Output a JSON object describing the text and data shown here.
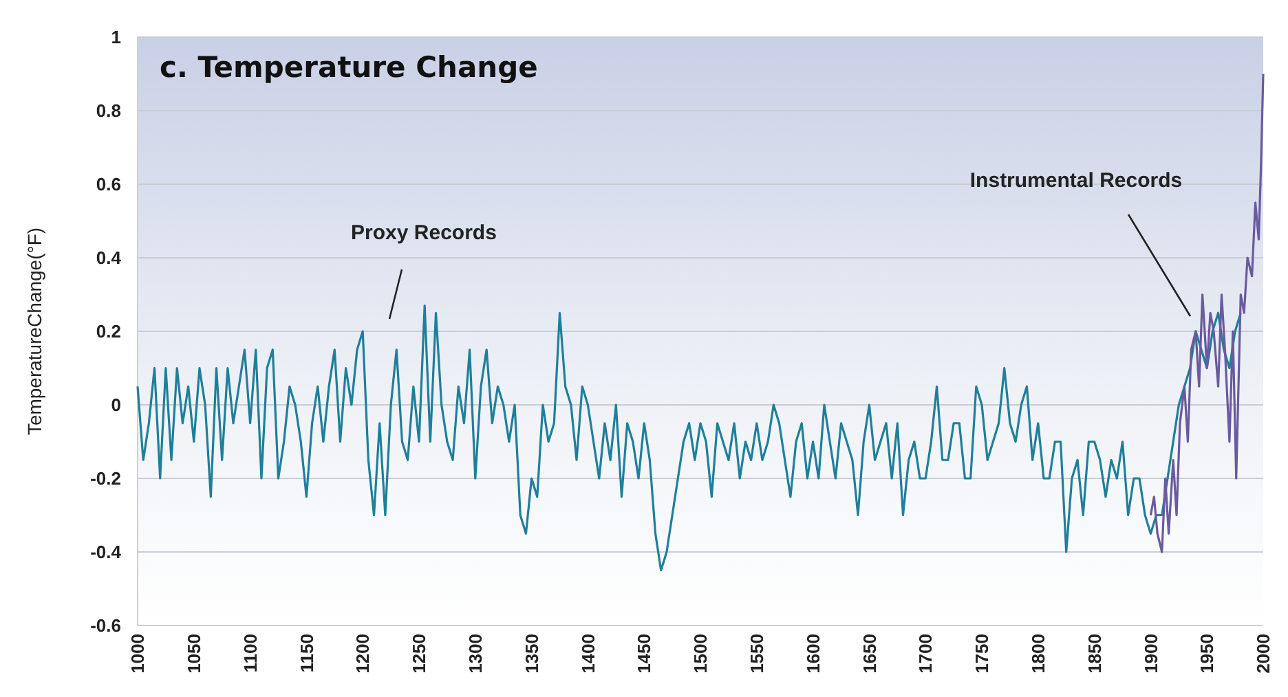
{
  "chart_data": {
    "type": "line",
    "title": "c. Temperature Change",
    "ylabel": "TemperatureChange(°F)",
    "xlim": [
      1000,
      2000
    ],
    "xticks": [
      1000,
      1050,
      1100,
      1150,
      1200,
      1250,
      1300,
      1350,
      1400,
      1450,
      1500,
      1550,
      1600,
      1650,
      1700,
      1750,
      1800,
      1850,
      1900,
      1950,
      2000
    ],
    "ylim": [
      -0.6,
      1
    ],
    "yticks": [
      -0.6,
      -0.4,
      -0.2,
      0,
      0.2,
      0.4,
      0.6,
      0.8,
      1
    ],
    "grid": "y",
    "series": [
      {
        "name": "Proxy Records",
        "color": "#1f7f9a",
        "x": [
          1000,
          1005,
          1010,
          1015,
          1020,
          1025,
          1030,
          1035,
          1040,
          1045,
          1050,
          1055,
          1060,
          1065,
          1070,
          1075,
          1080,
          1085,
          1090,
          1095,
          1100,
          1105,
          1110,
          1115,
          1120,
          1125,
          1130,
          1135,
          1140,
          1145,
          1150,
          1155,
          1160,
          1165,
          1170,
          1175,
          1180,
          1185,
          1190,
          1195,
          1200,
          1205,
          1210,
          1215,
          1220,
          1225,
          1230,
          1235,
          1240,
          1245,
          1250,
          1255,
          1260,
          1265,
          1270,
          1275,
          1280,
          1285,
          1290,
          1295,
          1300,
          1305,
          1310,
          1315,
          1320,
          1325,
          1330,
          1335,
          1340,
          1345,
          1350,
          1355,
          1360,
          1365,
          1370,
          1375,
          1380,
          1385,
          1390,
          1395,
          1400,
          1405,
          1410,
          1415,
          1420,
          1425,
          1430,
          1435,
          1440,
          1445,
          1450,
          1455,
          1460,
          1465,
          1470,
          1475,
          1480,
          1485,
          1490,
          1495,
          1500,
          1505,
          1510,
          1515,
          1520,
          1525,
          1530,
          1535,
          1540,
          1545,
          1550,
          1555,
          1560,
          1565,
          1570,
          1575,
          1580,
          1585,
          1590,
          1595,
          1600,
          1605,
          1610,
          1615,
          1620,
          1625,
          1630,
          1635,
          1640,
          1645,
          1650,
          1655,
          1660,
          1665,
          1670,
          1675,
          1680,
          1685,
          1690,
          1695,
          1700,
          1705,
          1710,
          1715,
          1720,
          1725,
          1730,
          1735,
          1740,
          1745,
          1750,
          1755,
          1760,
          1765,
          1770,
          1775,
          1780,
          1785,
          1790,
          1795,
          1800,
          1805,
          1810,
          1815,
          1820,
          1825,
          1830,
          1835,
          1840,
          1845,
          1850,
          1855,
          1860,
          1865,
          1870,
          1875,
          1880,
          1885,
          1890,
          1895,
          1900,
          1905,
          1910,
          1915,
          1920,
          1925,
          1930,
          1935,
          1940,
          1945,
          1950,
          1955,
          1960,
          1965,
          1970,
          1975,
          1980
        ],
        "values": [
          0.05,
          -0.15,
          -0.05,
          0.1,
          -0.2,
          0.1,
          -0.15,
          0.1,
          -0.05,
          0.05,
          -0.1,
          0.1,
          0.0,
          -0.25,
          0.1,
          -0.15,
          0.1,
          -0.05,
          0.05,
          0.15,
          -0.05,
          0.15,
          -0.2,
          0.1,
          0.15,
          -0.2,
          -0.1,
          0.05,
          0.0,
          -0.1,
          -0.25,
          -0.05,
          0.05,
          -0.1,
          0.05,
          0.15,
          -0.1,
          0.1,
          0.0,
          0.15,
          0.2,
          -0.15,
          -0.3,
          -0.05,
          -0.3,
          0.0,
          0.15,
          -0.1,
          -0.15,
          0.05,
          -0.1,
          0.27,
          -0.1,
          0.25,
          0.0,
          -0.1,
          -0.15,
          0.05,
          -0.05,
          0.15,
          -0.2,
          0.05,
          0.15,
          -0.05,
          0.05,
          0.0,
          -0.1,
          0.0,
          -0.3,
          -0.35,
          -0.2,
          -0.25,
          0.0,
          -0.1,
          -0.05,
          0.25,
          0.05,
          0.0,
          -0.15,
          0.05,
          0.0,
          -0.1,
          -0.2,
          -0.05,
          -0.15,
          0.0,
          -0.25,
          -0.05,
          -0.1,
          -0.2,
          -0.05,
          -0.15,
          -0.35,
          -0.45,
          -0.4,
          -0.3,
          -0.2,
          -0.1,
          -0.05,
          -0.15,
          -0.05,
          -0.1,
          -0.25,
          -0.05,
          -0.1,
          -0.15,
          -0.05,
          -0.2,
          -0.1,
          -0.15,
          -0.05,
          -0.15,
          -0.1,
          0.0,
          -0.05,
          -0.15,
          -0.25,
          -0.1,
          -0.05,
          -0.2,
          -0.1,
          -0.2,
          0.0,
          -0.1,
          -0.2,
          -0.05,
          -0.1,
          -0.15,
          -0.3,
          -0.1,
          0.0,
          -0.15,
          -0.1,
          -0.05,
          -0.2,
          -0.05,
          -0.3,
          -0.15,
          -0.1,
          -0.2,
          -0.2,
          -0.1,
          0.05,
          -0.15,
          -0.15,
          -0.05,
          -0.05,
          -0.2,
          -0.2,
          0.05,
          0.0,
          -0.15,
          -0.1,
          -0.05,
          0.1,
          -0.05,
          -0.1,
          0.0,
          0.05,
          -0.15,
          -0.05,
          -0.2,
          -0.2,
          -0.1,
          -0.1,
          -0.4,
          -0.2,
          -0.15,
          -0.3,
          -0.1,
          -0.1,
          -0.15,
          -0.25,
          -0.15,
          -0.2,
          -0.1,
          -0.3,
          -0.2,
          -0.2,
          -0.3,
          -0.35,
          -0.3,
          -0.3,
          -0.2,
          -0.1,
          0.0,
          0.05,
          0.1,
          0.2,
          0.15,
          0.1,
          0.2,
          0.25,
          0.15,
          0.1,
          0.2,
          0.25
        ]
      },
      {
        "name": "Instrumental Records",
        "color": "#6a5a9e",
        "x": [
          1900,
          1903,
          1906,
          1910,
          1913,
          1916,
          1920,
          1923,
          1926,
          1930,
          1933,
          1936,
          1940,
          1943,
          1946,
          1950,
          1953,
          1956,
          1960,
          1963,
          1966,
          1970,
          1973,
          1976,
          1980,
          1983,
          1986,
          1990,
          1993,
          1996,
          1998,
          2000
        ],
        "values": [
          -0.3,
          -0.25,
          -0.35,
          -0.4,
          -0.2,
          -0.35,
          -0.15,
          -0.3,
          -0.05,
          0.05,
          -0.1,
          0.15,
          0.2,
          0.05,
          0.3,
          0.1,
          0.25,
          0.2,
          0.05,
          0.3,
          0.15,
          -0.1,
          0.2,
          -0.2,
          0.3,
          0.25,
          0.4,
          0.35,
          0.55,
          0.45,
          0.65,
          0.9
        ]
      }
    ]
  }
}
